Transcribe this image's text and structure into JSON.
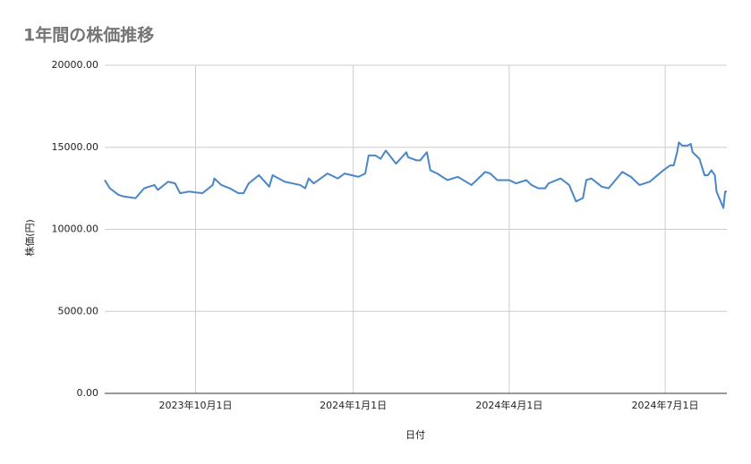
{
  "chart_data": {
    "type": "line",
    "title": "1年間の株価推移",
    "x_label": "日付",
    "y_label": "株価(円)",
    "x": [
      "2023-08-09",
      "2023-08-12",
      "2023-08-17",
      "2023-08-20",
      "2023-08-27",
      "2023-09-01",
      "2023-09-07",
      "2023-09-09",
      "2023-09-15",
      "2023-09-19",
      "2023-09-22",
      "2023-09-27",
      "2023-10-05",
      "2023-10-11",
      "2023-10-12",
      "2023-10-16",
      "2023-10-21",
      "2023-10-26",
      "2023-10-29",
      "2023-11-01",
      "2023-11-07",
      "2023-11-13",
      "2023-11-15",
      "2023-11-22",
      "2023-12-01",
      "2023-12-04",
      "2023-12-06",
      "2023-12-09",
      "2023-12-17",
      "2023-12-23",
      "2023-12-27",
      "2024-01-04",
      "2024-01-08",
      "2024-01-10",
      "2024-01-14",
      "2024-01-17",
      "2024-01-20",
      "2024-01-26",
      "2024-02-01",
      "2024-02-02",
      "2024-02-07",
      "2024-02-09",
      "2024-02-13",
      "2024-02-15",
      "2024-02-19",
      "2024-02-25",
      "2024-03-02",
      "2024-03-10",
      "2024-03-18",
      "2024-03-21",
      "2024-03-25",
      "2024-04-01",
      "2024-04-05",
      "2024-04-11",
      "2024-04-14",
      "2024-04-18",
      "2024-04-22",
      "2024-04-24",
      "2024-05-01",
      "2024-05-06",
      "2024-05-10",
      "2024-05-14",
      "2024-05-16",
      "2024-05-19",
      "2024-05-25",
      "2024-05-29",
      "2024-06-06",
      "2024-06-11",
      "2024-06-16",
      "2024-06-22",
      "2024-06-30",
      "2024-07-04",
      "2024-07-06",
      "2024-07-08",
      "2024-07-09",
      "2024-07-11",
      "2024-07-14",
      "2024-07-16",
      "2024-07-17",
      "2024-07-21",
      "2024-07-24",
      "2024-07-26",
      "2024-07-28",
      "2024-07-30",
      "2024-07-31",
      "2024-08-04",
      "2024-08-05",
      "2024-08-06"
    ],
    "series": [
      {
        "name": "株価",
        "color": "#4a86c8",
        "values": [
          13000,
          12500,
          12100,
          12000,
          11900,
          12500,
          12700,
          12400,
          12900,
          12800,
          12200,
          12300,
          12200,
          12700,
          13100,
          12700,
          12500,
          12200,
          12200,
          12800,
          13300,
          12600,
          13300,
          12900,
          12700,
          12500,
          13100,
          12800,
          13400,
          13100,
          13400,
          13200,
          13400,
          14500,
          14500,
          14300,
          14800,
          14000,
          14700,
          14400,
          14200,
          14200,
          14700,
          13600,
          13400,
          13000,
          13200,
          12700,
          13500,
          13400,
          13000,
          13000,
          12800,
          13000,
          12700,
          12500,
          12500,
          12800,
          13100,
          12700,
          11700,
          11900,
          13000,
          13100,
          12600,
          12500,
          13500,
          13200,
          12700,
          12900,
          13600,
          13900,
          13900,
          14700,
          15300,
          15100,
          15100,
          15200,
          14700,
          14300,
          13300,
          13300,
          13600,
          13300,
          12300,
          11300,
          12300,
          12300
        ]
      }
    ],
    "xlim": [
      "2023-08-09",
      "2024-08-06"
    ],
    "xticks": [
      {
        "value": "2023-10-01",
        "label": "2023年10月1日"
      },
      {
        "value": "2024-01-01",
        "label": "2024年1月1日"
      },
      {
        "value": "2024-04-01",
        "label": "2024年4月1日"
      },
      {
        "value": "2024-07-01",
        "label": "2024年7月1日"
      }
    ],
    "ylim": [
      0,
      20000
    ],
    "yticks": [
      {
        "value": 0,
        "label": "0.00"
      },
      {
        "value": 5000,
        "label": "5000.00"
      },
      {
        "value": 10000,
        "label": "10000.00"
      },
      {
        "value": 15000,
        "label": "15000.00"
      },
      {
        "value": 20000,
        "label": "20000.00"
      }
    ],
    "grid": true
  }
}
